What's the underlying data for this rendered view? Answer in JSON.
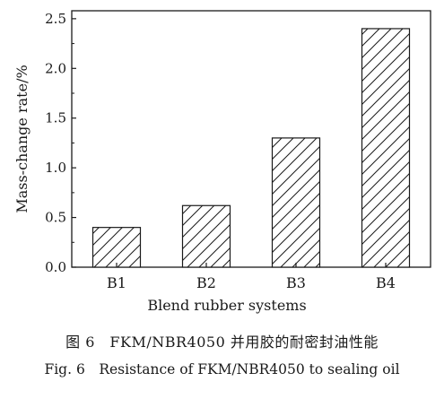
{
  "chart_data": {
    "type": "bar",
    "categories": [
      "B1",
      "B2",
      "B3",
      "B4"
    ],
    "values": [
      0.4,
      0.62,
      1.3,
      2.4
    ],
    "xlabel": "Blend rubber systems",
    "ylabel": "Mass-change rate/%",
    "ylim": [
      0.0,
      2.5
    ],
    "yticks": [
      "0.0",
      "0.5",
      "1.0",
      "1.5",
      "2.0",
      "2.5"
    ],
    "grid": false,
    "bar_fill": "diagonal hatch",
    "colors": {
      "axis": "#1a1a1a",
      "bar_stroke": "#1a1a1a",
      "bar_fill": "#ffffff"
    }
  },
  "captions": {
    "cn": "图 6　FKM/NBR4050 并用胶的耐密封油性能",
    "en": "Fig. 6　Resistance of FKM/NBR4050 to sealing oil"
  }
}
